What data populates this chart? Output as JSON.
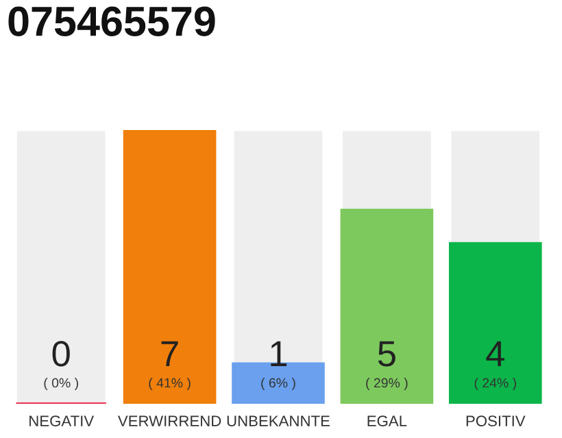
{
  "chart_data": {
    "type": "bar",
    "title": "075465579",
    "categories": [
      "NEGATIV",
      "VERWIRREND",
      "UNBEKANNTE",
      "EGAL",
      "POSITIV"
    ],
    "values": [
      0,
      41,
      6,
      29,
      24
    ],
    "colors": [
      "#e8334f",
      "#f07f0b",
      "#6aa0ee",
      "#7dc95e",
      "#0bb54a"
    ],
    "value_labels": [
      "( 0% )",
      "( 41% )",
      "( 6% )",
      "( 29% )",
      "( 24% )"
    ],
    "annotations": [
      "0",
      "7",
      "1",
      "5",
      "4"
    ]
  }
}
